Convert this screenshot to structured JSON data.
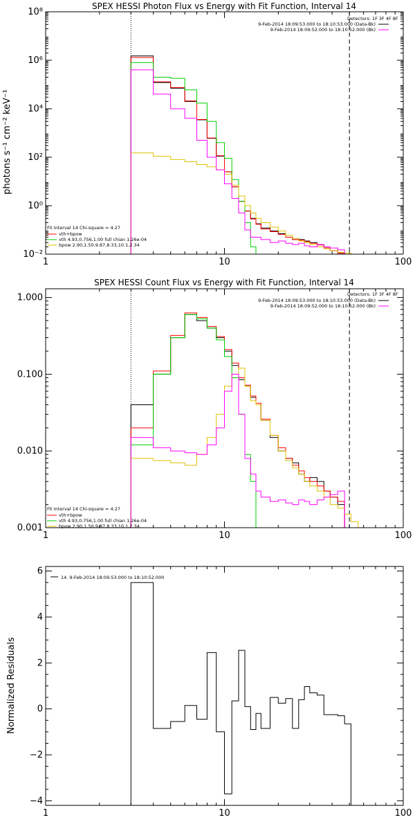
{
  "colors": {
    "total": "#000000",
    "model": "#ff0000",
    "vth": "#00d000",
    "bpow": "#e0c000",
    "bk": "#ff00ff"
  },
  "chart_data": [
    {
      "type": "line",
      "title": "SPEX HESSI Photon Flux vs Energy with Fit Function, Interval 14",
      "ylabel": "photons s⁻¹ cm⁻² keV⁻¹",
      "xlabel": "",
      "xscale": "log",
      "yscale": "log",
      "xlim": [
        1,
        100
      ],
      "ylim": [
        0.01,
        100000000
      ],
      "xticks": [
        1,
        10,
        100
      ],
      "xtick_labels": [
        "1",
        "10",
        "100"
      ],
      "yticks": [
        0.01,
        1,
        100,
        10000,
        1000000,
        100000000
      ],
      "ytick_labels": [
        "10⁻²",
        "10⁰",
        "10²",
        "10⁴",
        "10⁶",
        "10⁸"
      ],
      "vlines": [
        3,
        50
      ],
      "edges": [
        3,
        4,
        5,
        6,
        7,
        8,
        9,
        10,
        11,
        12,
        13,
        14,
        15,
        16,
        18,
        20,
        22,
        24,
        26,
        28,
        30,
        33,
        36,
        39,
        43,
        47,
        51,
        56
      ],
      "series": [
        {
          "name": "total",
          "color": "#000000",
          "values": [
            1500000,
            120000,
            70000,
            20000,
            3500,
            600,
            110,
            25,
            6,
            1.5,
            0.6,
            0.3,
            0.18,
            0.12,
            0.09,
            0.07,
            0.05,
            0.04,
            0.04,
            0.035,
            0.03,
            0.025,
            0.018,
            0.014,
            0.011,
            0.01,
            null
          ]
        },
        {
          "name": "vth+bpow",
          "color": "#ff0000",
          "values": [
            1300000,
            130000,
            75000,
            21000,
            3600,
            620,
            115,
            25,
            6,
            1.5,
            0.6,
            0.28,
            0.17,
            0.11,
            0.085,
            0.065,
            0.05,
            0.04,
            0.038,
            0.033,
            0.028,
            0.024,
            0.018,
            0.014,
            0.011,
            0.01,
            null
          ]
        },
        {
          "name": "vth",
          "color": "#00d000",
          "values": [
            800000,
            200000,
            180000,
            60000,
            17000,
            3000,
            400,
            90,
            12,
            1.5,
            0.2,
            0.02,
            null,
            null,
            null,
            null,
            null,
            null,
            null,
            null,
            null,
            null,
            null,
            null,
            null,
            null,
            null
          ]
        },
        {
          "name": "bpow",
          "color": "#e0c000",
          "values": [
            150,
            110,
            80,
            65,
            50,
            40,
            30,
            20,
            7,
            2.5,
            1.0,
            0.5,
            0.3,
            0.2,
            0.13,
            0.09,
            0.06,
            0.045,
            0.035,
            0.03,
            0.025,
            0.02,
            0.017,
            0.014,
            0.012,
            0.011,
            0.01
          ]
        },
        {
          "name": "background",
          "color": "#ff00ff",
          "values": [
            400000,
            40000,
            10000,
            4000,
            500,
            100,
            30,
            8,
            2,
            0.5,
            0.1,
            0.05,
            0.05,
            0.04,
            0.03,
            0.035,
            0.028,
            0.025,
            0.028,
            0.022,
            0.02,
            0.025,
            0.02,
            0.018,
            0.015,
            null,
            null
          ]
        }
      ],
      "detector_text": "Detectors: 1F 3F 4F 8F",
      "legend_right": [
        {
          "text": "9-Feb-2014 18:09:53.000 to 18:10:53.000 (Data-Bk)",
          "color": "#000000"
        },
        {
          "text": "9-Feb-2014 18:09:52.000 to 18:10:52.000 (Bk)",
          "color": "#ff00ff"
        }
      ],
      "fit_text": "Fit Interval 14   Chi-square = 4.27",
      "legend_left": [
        {
          "text": "vth+bpow",
          "color": "#ff0000"
        },
        {
          "text": "vth 4.93,0.756,1.00  full chian 1.26e-04",
          "color": "#00d000"
        },
        {
          "text": "bpow 2.90,1.50,9.87,8.33,10.1,2.34",
          "color": "#e0c000"
        }
      ]
    },
    {
      "type": "line",
      "title": "SPEX HESSI Count Flux vs Energy with Fit Function, Interval 14",
      "ylabel": "",
      "xlabel": "",
      "xscale": "log",
      "yscale": "log",
      "xlim": [
        1,
        100
      ],
      "ylim": [
        0.001,
        1.3
      ],
      "xticks": [
        1,
        10,
        100
      ],
      "xtick_labels": [
        "1",
        "10",
        "100"
      ],
      "yticks": [
        0.001,
        0.01,
        0.1,
        1
      ],
      "ytick_labels": [
        "0.001",
        "0.010",
        "0.100",
        "1.000"
      ],
      "vlines": [
        3,
        50
      ],
      "edges": [
        3,
        4,
        5,
        6,
        7,
        8,
        9,
        10,
        11,
        12,
        13,
        14,
        15,
        16,
        18,
        20,
        22,
        24,
        26,
        28,
        30,
        33,
        36,
        39,
        43,
        47,
        51,
        56,
        61,
        66,
        72
      ],
      "series": [
        {
          "name": "total",
          "color": "#000000",
          "values": [
            0.04,
            0.1,
            0.3,
            0.6,
            0.5,
            0.4,
            0.3,
            0.2,
            0.13,
            0.085,
            0.07,
            0.05,
            0.04,
            0.025,
            0.015,
            0.01,
            0.008,
            0.007,
            0.005,
            0.004,
            0.0045,
            0.004,
            0.003,
            0.0025,
            0.002,
            null,
            null,
            null,
            null,
            null
          ]
        },
        {
          "name": "vth+bpow",
          "color": "#ff0000",
          "values": [
            0.02,
            0.11,
            0.32,
            0.63,
            0.55,
            0.42,
            0.31,
            0.21,
            0.14,
            0.09,
            0.072,
            0.052,
            0.042,
            0.026,
            0.016,
            0.011,
            0.008,
            0.0065,
            0.0055,
            0.0045,
            0.004,
            0.0035,
            0.003,
            0.0025,
            0.0022,
            null,
            null,
            null,
            null,
            null
          ]
        },
        {
          "name": "vth",
          "color": "#00d000",
          "values": [
            0.012,
            0.1,
            0.3,
            0.6,
            0.53,
            0.4,
            0.28,
            0.17,
            0.09,
            0.03,
            0.009,
            0.004,
            0.001,
            null,
            null,
            null,
            null,
            null,
            null,
            null,
            null,
            null,
            null,
            null,
            null,
            null,
            null,
            null,
            null,
            null
          ]
        },
        {
          "name": "bpow",
          "color": "#e0c000",
          "values": [
            0.008,
            0.0075,
            0.007,
            0.0065,
            0.009,
            0.015,
            0.03,
            0.07,
            0.1,
            0.12,
            0.07,
            0.045,
            0.04,
            0.025,
            0.016,
            0.01,
            0.0075,
            0.006,
            0.005,
            0.004,
            0.0035,
            0.003,
            0.0025,
            0.002,
            0.0018,
            0.0015,
            0.0012,
            0.001,
            0.0009,
            null
          ]
        },
        {
          "name": "background",
          "color": "#ff00ff",
          "values": [
            0.015,
            0.011,
            0.01,
            0.0095,
            0.009,
            0.012,
            0.02,
            0.06,
            0.1,
            0.03,
            0.008,
            0.005,
            0.003,
            0.0025,
            0.0022,
            0.0023,
            0.0021,
            0.002,
            0.0023,
            0.0022,
            0.002,
            0.0023,
            0.0025,
            0.0027,
            0.003,
            null,
            null,
            null,
            null,
            null
          ]
        }
      ],
      "detector_text": "Detectors: 1F 3F 4F 8F",
      "legend_right": [
        {
          "text": "9-Feb-2014 18:09:53.000 to 18:10:53.000 (Data-Bk)",
          "color": "#000000"
        },
        {
          "text": "9-Feb-2014 18:09:52.000 to 18:10:52.000 (Bk)",
          "color": "#ff00ff"
        }
      ],
      "fit_text": "Fit Interval 14   Chi-square = 4.27",
      "legend_left": [
        {
          "text": "vth+bpow",
          "color": "#ff0000"
        },
        {
          "text": "vth 4.93,0.756,1.00  full chian 1.26e-04",
          "color": "#00d000"
        },
        {
          "text": "bpow 2.90,1.50,9.87,8.33,10.1,2.34",
          "color": "#e0c000"
        }
      ]
    },
    {
      "type": "line",
      "title": "",
      "ylabel": "Normalized Residuals",
      "xlabel": "",
      "xscale": "log",
      "yscale": "linear",
      "xlim": [
        1,
        100
      ],
      "ylim": [
        -4.2,
        6.2
      ],
      "xticks": [
        1,
        10,
        100
      ],
      "xtick_labels": [
        "1",
        "10",
        "100"
      ],
      "yticks": [
        -4,
        -2,
        0,
        2,
        4,
        6
      ],
      "ytick_labels": [
        "−4",
        "−2",
        "0",
        "2",
        "4",
        "6"
      ],
      "vlines": [],
      "edges": [
        3,
        4,
        5,
        6,
        7,
        8,
        9,
        10,
        11,
        12,
        13,
        14,
        15,
        16,
        18,
        20,
        22,
        24,
        26,
        28,
        30,
        33,
        36,
        39,
        43,
        47,
        51
      ],
      "series": [
        {
          "name": "residuals",
          "color": "#000000",
          "values": [
            5.5,
            -0.85,
            -0.55,
            0.15,
            -0.45,
            2.45,
            -1.0,
            -3.7,
            0.35,
            2.55,
            0.1,
            -0.9,
            -0.2,
            -0.85,
            0.5,
            0.25,
            0.45,
            -0.85,
            0.4,
            0.97,
            0.7,
            0.6,
            -0.25,
            -0.25,
            -0.3,
            -0.65
          ]
        }
      ],
      "legend_top_text": "14.  9-Feb-2014 18:09:53.000 to 18:10:52.000"
    }
  ]
}
